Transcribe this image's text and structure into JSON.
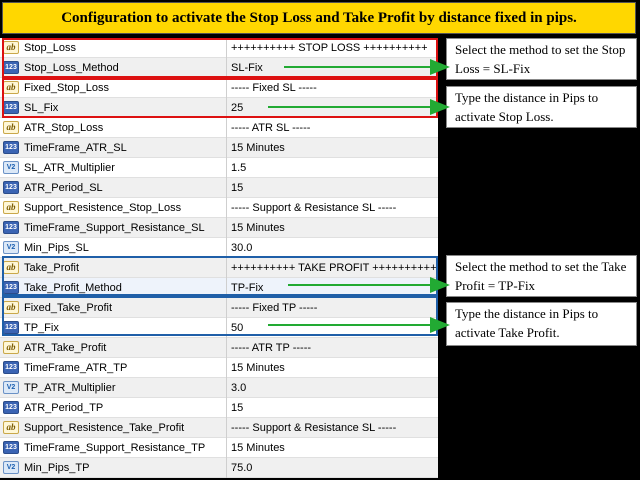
{
  "banner": {
    "title": "Configuration to activate the Stop Loss and Take Profit by distance fixed in pips."
  },
  "rows": [
    {
      "type": "ab",
      "name": "Stop_Loss",
      "value": "++++++++++ STOP LOSS ++++++++++"
    },
    {
      "type": "123",
      "name": "Stop_Loss_Method",
      "value": "SL-Fix"
    },
    {
      "type": "ab",
      "name": "Fixed_Stop_Loss",
      "value": "----- Fixed SL -----"
    },
    {
      "type": "123",
      "name": "SL_Fix",
      "value": "25"
    },
    {
      "type": "ab",
      "name": "ATR_Stop_Loss",
      "value": "----- ATR SL -----"
    },
    {
      "type": "123",
      "name": "TimeFrame_ATR_SL",
      "value": "15 Minutes"
    },
    {
      "type": "v12",
      "name": "SL_ATR_Multiplier",
      "value": "1.5"
    },
    {
      "type": "123",
      "name": "ATR_Period_SL",
      "value": "15"
    },
    {
      "type": "ab",
      "name": "Support_Resistence_Stop_Loss",
      "value": "----- Support & Resistance SL -----"
    },
    {
      "type": "123",
      "name": "TimeFrame_Support_Resistance_SL",
      "value": "15 Minutes"
    },
    {
      "type": "v12",
      "name": "Min_Pips_SL",
      "value": "30.0"
    },
    {
      "type": "ab",
      "name": "Take_Profit",
      "value": "++++++++++ TAKE PROFIT ++++++++++"
    },
    {
      "type": "123",
      "name": "Take_Profit_Method",
      "value": "TP-Fix"
    },
    {
      "type": "ab",
      "name": "Fixed_Take_Profit",
      "value": "----- Fixed TP -----"
    },
    {
      "type": "123",
      "name": "TP_Fix",
      "value": "50"
    },
    {
      "type": "ab",
      "name": "ATR_Take_Profit",
      "value": "----- ATR TP -----"
    },
    {
      "type": "123",
      "name": "TimeFrame_ATR_TP",
      "value": "15 Minutes"
    },
    {
      "type": "v12",
      "name": "TP_ATR_Multiplier",
      "value": "3.0"
    },
    {
      "type": "123",
      "name": "ATR_Period_TP",
      "value": "15"
    },
    {
      "type": "ab",
      "name": "Support_Resistence_Take_Profit",
      "value": "----- Support & Resistance SL -----"
    },
    {
      "type": "123",
      "name": "TimeFrame_Support_Resistance_TP",
      "value": "15 Minutes"
    },
    {
      "type": "v12",
      "name": "Min_Pips_TP",
      "value": "75.0"
    }
  ],
  "icons": {
    "ab": "ab",
    "123": "123",
    "v12": "V2"
  },
  "notes": {
    "sl_method": "Select the method to set the Stop Loss = SL-Fix",
    "sl_fix": "Type the distance in Pips to activate Stop Loss.",
    "tp_method": "Select the method to set the Take Profit = TP-Fix",
    "tp_fix": "Type the distance in Pips to activate Take Profit."
  },
  "colors": {
    "banner": "#FFD700",
    "sl_highlight": "#DD1111",
    "tp_highlight": "#1F5FA8",
    "arrow": "#22AA33"
  }
}
